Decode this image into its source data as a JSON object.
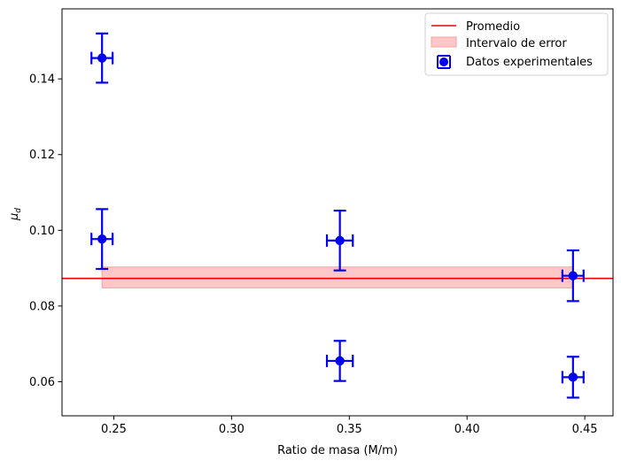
{
  "chart_data": {
    "type": "scatter",
    "title": "",
    "xlabel": "Ratio de masa (M/m)",
    "ylabel": "μd",
    "ylabel_main": "μ",
    "ylabel_sub": "d",
    "xlim": [
      0.228,
      0.462
    ],
    "ylim": [
      0.051,
      0.1585
    ],
    "xticks": [
      0.25,
      0.3,
      0.35,
      0.4,
      0.45
    ],
    "xtick_labels": [
      "0.25",
      "0.30",
      "0.35",
      "0.40",
      "0.45"
    ],
    "yticks": [
      0.06,
      0.08,
      0.1,
      0.12,
      0.14
    ],
    "ytick_labels": [
      "0.06",
      "0.08",
      "0.10",
      "0.12",
      "0.14"
    ],
    "grid": false,
    "legend_position": "top-right",
    "colors": {
      "data": "#0000ee",
      "mean_line": "#ee0000",
      "band_fill": "#ff9999",
      "band_edge": "#f4a0a0",
      "axes": "#000000"
    },
    "mean_line": {
      "name": "Promedio",
      "y": 0.0873
    },
    "error_band": {
      "name": "Intervalo de error",
      "x_range": [
        0.245,
        0.445
      ],
      "y_range": [
        0.0848,
        0.0903
      ]
    },
    "series": [
      {
        "name": "Datos experimentales",
        "points": [
          {
            "x": 0.245,
            "y": 0.1455,
            "x_err": 0.0045,
            "y_err": 0.0065
          },
          {
            "x": 0.245,
            "y": 0.0977,
            "x_err": 0.0045,
            "y_err": 0.0079
          },
          {
            "x": 0.346,
            "y": 0.0973,
            "x_err": 0.0055,
            "y_err": 0.0079
          },
          {
            "x": 0.346,
            "y": 0.0655,
            "x_err": 0.0055,
            "y_err": 0.0053
          },
          {
            "x": 0.445,
            "y": 0.088,
            "x_err": 0.0045,
            "y_err": 0.0067
          },
          {
            "x": 0.445,
            "y": 0.0612,
            "x_err": 0.0045,
            "y_err": 0.0054
          }
        ]
      }
    ]
  }
}
